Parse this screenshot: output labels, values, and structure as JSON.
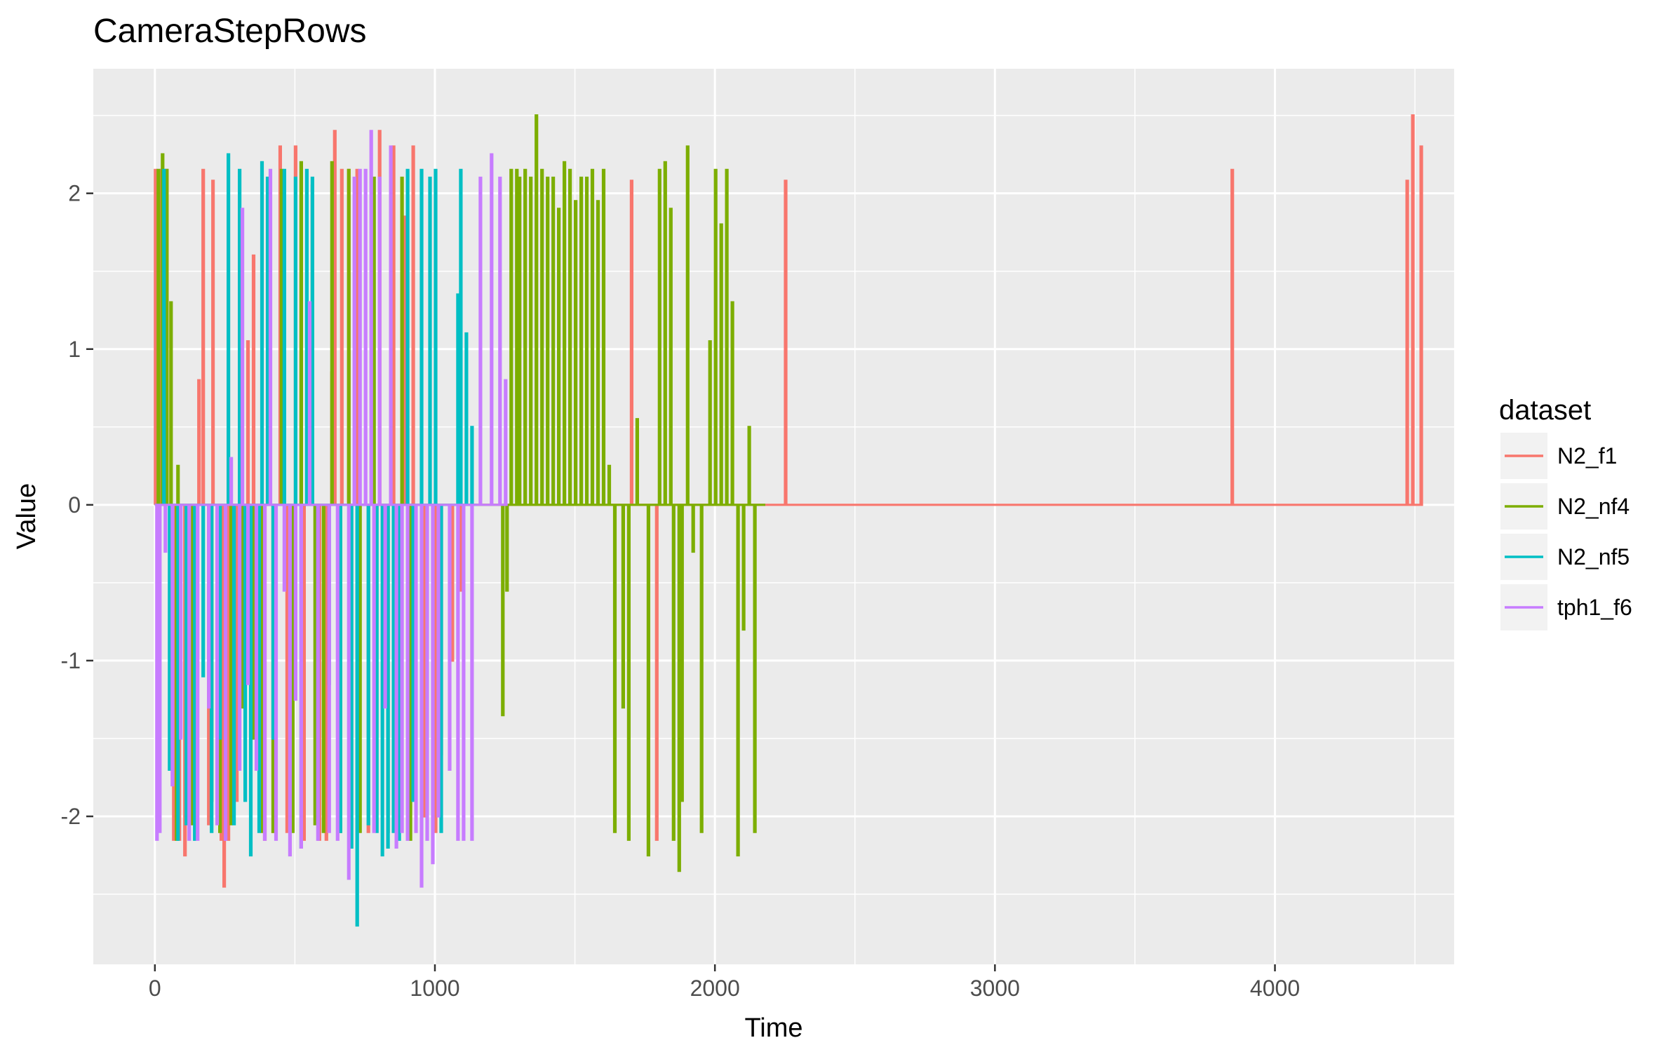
{
  "chart_data": {
    "type": "line",
    "title": "CameraStepRows",
    "xlabel": "Time",
    "ylabel": "Value",
    "xlim": [
      -220,
      4640
    ],
    "ylim": [
      -2.95,
      2.8
    ],
    "x_ticks": [
      0,
      1000,
      2000,
      3000,
      4000
    ],
    "x_tick_labels": [
      "0",
      "1000",
      "2000",
      "3000",
      "4000"
    ],
    "y_ticks": [
      -2,
      -1,
      0,
      1,
      2
    ],
    "y_tick_labels": [
      "-2",
      "-1",
      "0",
      "1",
      "2"
    ],
    "grid": true,
    "legend": {
      "title": "dataset",
      "position": "right"
    },
    "background_color": "#ebebeb",
    "grid_color": "#ffffff",
    "series": [
      {
        "name": "N2_f1",
        "color": "#f8766d",
        "x_end": 4520,
        "spikes": [
          [
            0,
            2.15
          ],
          [
            20,
            2.15
          ],
          [
            40,
            2.15
          ],
          [
            65,
            -2.15
          ],
          [
            85,
            -2.15
          ],
          [
            105,
            -2.25
          ],
          [
            155,
            0.8
          ],
          [
            170,
            2.15
          ],
          [
            190,
            -2.05
          ],
          [
            205,
            2.08
          ],
          [
            235,
            -2.15
          ],
          [
            245,
            -2.45
          ],
          [
            260,
            -2.15
          ],
          [
            290,
            -1.9
          ],
          [
            330,
            1.05
          ],
          [
            350,
            1.6
          ],
          [
            390,
            -2.15
          ],
          [
            420,
            -2.1
          ],
          [
            445,
            2.3
          ],
          [
            470,
            -2.1
          ],
          [
            500,
            2.3
          ],
          [
            530,
            -2.15
          ],
          [
            560,
            2.05
          ],
          [
            585,
            -2.15
          ],
          [
            610,
            -2.15
          ],
          [
            630,
            0.85
          ],
          [
            640,
            2.4
          ],
          [
            665,
            2.15
          ],
          [
            690,
            2.15
          ],
          [
            720,
            2.15
          ],
          [
            760,
            -2.1
          ],
          [
            800,
            2.4
          ],
          [
            850,
            2.3
          ],
          [
            890,
            1.85
          ],
          [
            920,
            2.3
          ],
          [
            960,
            -2.0
          ],
          [
            1000,
            -2.1
          ],
          [
            1020,
            -1.6
          ],
          [
            1060,
            -1.0
          ],
          [
            1090,
            -0.55
          ],
          [
            1120,
            0.0
          ],
          [
            1700,
            2.08
          ],
          [
            1790,
            -2.15
          ],
          [
            2250,
            2.08
          ],
          [
            3845,
            2.15
          ],
          [
            4470,
            2.08
          ],
          [
            4490,
            2.5
          ],
          [
            4520,
            2.3
          ]
        ]
      },
      {
        "name": "N2_nf4",
        "color": "#7cae00",
        "x_end": 2180,
        "spikes": [
          [
            10,
            2.15
          ],
          [
            25,
            2.25
          ],
          [
            40,
            2.15
          ],
          [
            55,
            1.3
          ],
          [
            75,
            -2.15
          ],
          [
            80,
            0.25
          ],
          [
            130,
            -2.05
          ],
          [
            200,
            -1.9
          ],
          [
            230,
            -2.1
          ],
          [
            270,
            -2.05
          ],
          [
            310,
            -1.3
          ],
          [
            350,
            -1.5
          ],
          [
            380,
            -2.1
          ],
          [
            420,
            -2.1
          ],
          [
            450,
            2.15
          ],
          [
            490,
            -2.1
          ],
          [
            520,
            2.2
          ],
          [
            570,
            -2.05
          ],
          [
            600,
            -2.1
          ],
          [
            630,
            2.2
          ],
          [
            660,
            -2.1
          ],
          [
            690,
            2.15
          ],
          [
            730,
            -2.1
          ],
          [
            780,
            2.1
          ],
          [
            830,
            -2.1
          ],
          [
            880,
            2.1
          ],
          [
            910,
            -2.15
          ],
          [
            1240,
            -1.35
          ],
          [
            1255,
            -0.55
          ],
          [
            1270,
            2.15
          ],
          [
            1290,
            2.15
          ],
          [
            1300,
            2.1
          ],
          [
            1320,
            2.15
          ],
          [
            1340,
            2.1
          ],
          [
            1360,
            2.5
          ],
          [
            1380,
            2.15
          ],
          [
            1400,
            2.1
          ],
          [
            1420,
            2.1
          ],
          [
            1440,
            1.9
          ],
          [
            1460,
            2.2
          ],
          [
            1480,
            2.15
          ],
          [
            1500,
            1.95
          ],
          [
            1520,
            2.1
          ],
          [
            1540,
            2.1
          ],
          [
            1560,
            2.15
          ],
          [
            1580,
            1.95
          ],
          [
            1600,
            2.15
          ],
          [
            1620,
            0.25
          ],
          [
            1640,
            -2.1
          ],
          [
            1670,
            -1.3
          ],
          [
            1690,
            -2.15
          ],
          [
            1720,
            0.55
          ],
          [
            1760,
            -2.25
          ],
          [
            1800,
            2.15
          ],
          [
            1820,
            2.2
          ],
          [
            1840,
            1.9
          ],
          [
            1850,
            -2.15
          ],
          [
            1870,
            -2.35
          ],
          [
            1880,
            -1.9
          ],
          [
            1900,
            2.3
          ],
          [
            1920,
            -0.3
          ],
          [
            1950,
            -2.1
          ],
          [
            1980,
            1.05
          ],
          [
            2000,
            2.15
          ],
          [
            2020,
            1.8
          ],
          [
            2040,
            2.15
          ],
          [
            2060,
            1.3
          ],
          [
            2080,
            -2.25
          ],
          [
            2100,
            -0.8
          ],
          [
            2120,
            0.5
          ],
          [
            2140,
            -2.1
          ]
        ]
      },
      {
        "name": "N2_nf5",
        "color": "#00bfc4",
        "x_end": 1150,
        "spikes": [
          [
            30,
            2.15
          ],
          [
            50,
            -1.7
          ],
          [
            80,
            -2.15
          ],
          [
            110,
            -2.05
          ],
          [
            140,
            -2.15
          ],
          [
            170,
            -1.1
          ],
          [
            200,
            -2.1
          ],
          [
            230,
            -1.5
          ],
          [
            260,
            2.25
          ],
          [
            280,
            -2.05
          ],
          [
            300,
            2.15
          ],
          [
            320,
            -1.9
          ],
          [
            340,
            -2.25
          ],
          [
            370,
            -2.1
          ],
          [
            380,
            2.2
          ],
          [
            400,
            2.1
          ],
          [
            420,
            -1.5
          ],
          [
            460,
            2.15
          ],
          [
            500,
            2.1
          ],
          [
            520,
            -2.2
          ],
          [
            540,
            2.15
          ],
          [
            560,
            2.1
          ],
          [
            580,
            -2.05
          ],
          [
            620,
            -1.15
          ],
          [
            660,
            -2.1
          ],
          [
            700,
            -2.2
          ],
          [
            720,
            -2.7
          ],
          [
            760,
            -2.05
          ],
          [
            790,
            -2.1
          ],
          [
            810,
            -2.25
          ],
          [
            830,
            -2.2
          ],
          [
            850,
            -2.1
          ],
          [
            870,
            -2.15
          ],
          [
            900,
            2.15
          ],
          [
            920,
            -1.9
          ],
          [
            950,
            2.15
          ],
          [
            980,
            2.1
          ],
          [
            1000,
            2.15
          ],
          [
            1020,
            -2.1
          ],
          [
            1080,
            1.35
          ],
          [
            1090,
            2.15
          ],
          [
            1110,
            1.1
          ],
          [
            1130,
            0.5
          ]
        ]
      },
      {
        "name": "tph1_f6",
        "color": "#c77cff",
        "x_end": 1260,
        "spikes": [
          [
            5,
            -2.15
          ],
          [
            15,
            -2.1
          ],
          [
            35,
            -0.3
          ],
          [
            60,
            -1.8
          ],
          [
            90,
            -1.5
          ],
          [
            120,
            -2.15
          ],
          [
            150,
            -2.15
          ],
          [
            190,
            -1.3
          ],
          [
            220,
            -2.05
          ],
          [
            250,
            -2.15
          ],
          [
            270,
            0.3
          ],
          [
            300,
            -1.7
          ],
          [
            310,
            1.9
          ],
          [
            330,
            -1.15
          ],
          [
            360,
            -1.7
          ],
          [
            390,
            -2.15
          ],
          [
            410,
            2.15
          ],
          [
            430,
            -2.15
          ],
          [
            460,
            -0.55
          ],
          [
            480,
            -2.25
          ],
          [
            500,
            -1.25
          ],
          [
            520,
            -2.2
          ],
          [
            550,
            1.3
          ],
          [
            580,
            -2.15
          ],
          [
            620,
            -2.1
          ],
          [
            650,
            -2.15
          ],
          [
            690,
            -2.4
          ],
          [
            710,
            2.1
          ],
          [
            730,
            2.15
          ],
          [
            750,
            2.15
          ],
          [
            770,
            2.4
          ],
          [
            780,
            -2.1
          ],
          [
            800,
            2.1
          ],
          [
            820,
            -1.3
          ],
          [
            840,
            2.3
          ],
          [
            860,
            -2.2
          ],
          [
            880,
            -2.1
          ],
          [
            900,
            -2.15
          ],
          [
            930,
            -2.1
          ],
          [
            950,
            -2.45
          ],
          [
            970,
            -2.15
          ],
          [
            990,
            -2.3
          ],
          [
            1010,
            -2.0
          ],
          [
            1050,
            -1.7
          ],
          [
            1080,
            -2.15
          ],
          [
            1100,
            -2.15
          ],
          [
            1130,
            -2.15
          ],
          [
            1160,
            2.1
          ],
          [
            1200,
            2.25
          ],
          [
            1230,
            2.1
          ],
          [
            1250,
            0.8
          ]
        ]
      }
    ]
  }
}
